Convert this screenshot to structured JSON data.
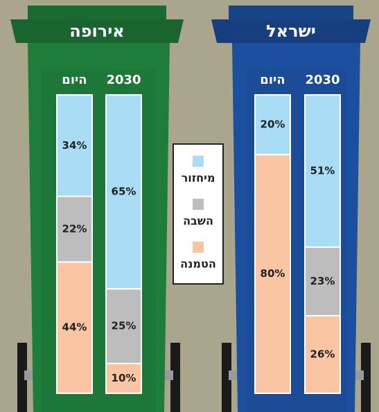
{
  "chart_data": {
    "type": "stacked_bar",
    "groups": [
      {
        "name": "אירופה",
        "color": "#1f7d3b"
      },
      {
        "name": "ישראל",
        "color": "#1d4f9f"
      }
    ],
    "categories": [
      "היום",
      "2030",
      "היום",
      "2030"
    ],
    "series": [
      {
        "name": "מיחזור",
        "color": "#a9ddf6",
        "values": [
          34,
          65,
          20,
          51
        ],
        "value_labels": [
          "34%",
          "65%",
          "20%",
          "51%"
        ]
      },
      {
        "name": "השבה",
        "color": "#bdbdbd",
        "values": [
          22,
          25,
          null,
          23
        ],
        "value_labels": [
          "22%",
          "25%",
          null,
          "23%"
        ]
      },
      {
        "name": "הטמנה",
        "color": "#f9c5a2",
        "values": [
          44,
          10,
          80,
          26
        ],
        "value_labels": [
          "44%",
          "10%",
          "80%",
          "26%"
        ]
      }
    ],
    "ylim": [
      0,
      100
    ]
  }
}
